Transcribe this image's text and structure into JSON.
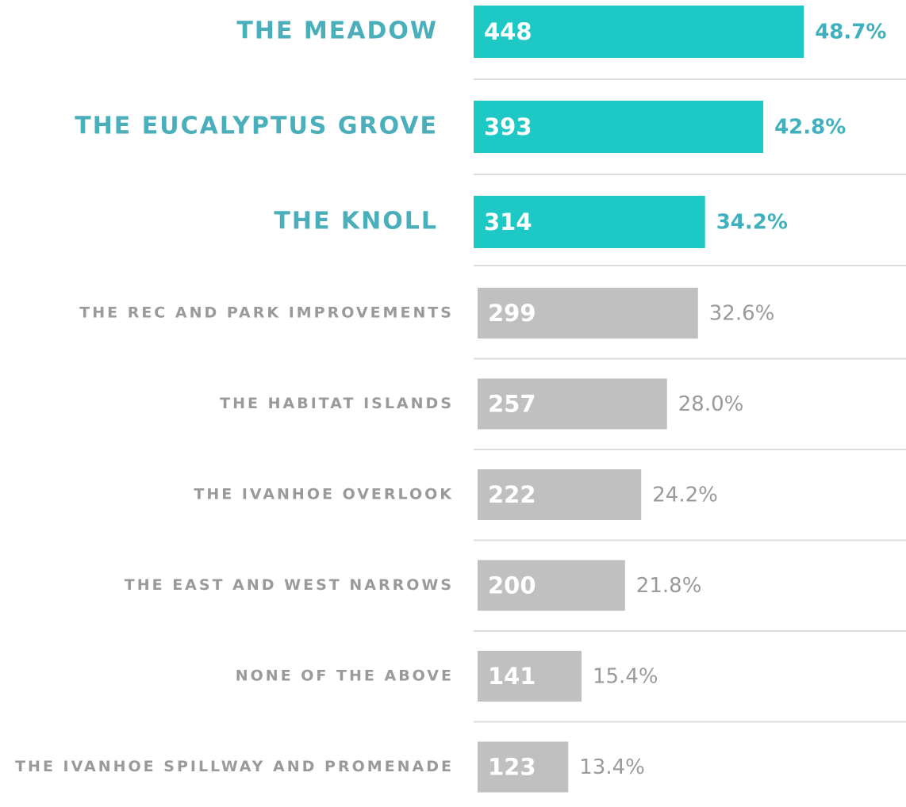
{
  "chart_data": {
    "type": "bar",
    "orientation": "horizontal",
    "categories": [
      "THE MEADOW",
      "THE EUCALYPTUS GROVE",
      "THE KNOLL",
      "THE REC AND PARK IMPROVEMENTS",
      "THE HABITAT ISLANDS",
      "THE IVANHOE OVERLOOK",
      "THE EAST AND WEST NARROWS",
      "NONE OF THE ABOVE",
      "THE IVANHOE SPILLWAY AND PROMENADE"
    ],
    "values": [
      448,
      393,
      314,
      299,
      257,
      222,
      200,
      141,
      123
    ],
    "percent_labels": [
      "48.7%",
      "42.8%",
      "34.2%",
      "32.6%",
      "28.0%",
      "24.2%",
      "21.8%",
      "15.4%",
      "13.4%"
    ],
    "colors": [
      "#1ec8c4",
      "#1ec8c4",
      "#1ec8c4",
      "#c0c0c0",
      "#c0c0c0",
      "#c0c0c0",
      "#c0c0c0",
      "#c0c0c0",
      "#c0c0c0"
    ],
    "highlight": [
      true,
      true,
      true,
      false,
      false,
      false,
      false,
      false,
      false
    ]
  }
}
